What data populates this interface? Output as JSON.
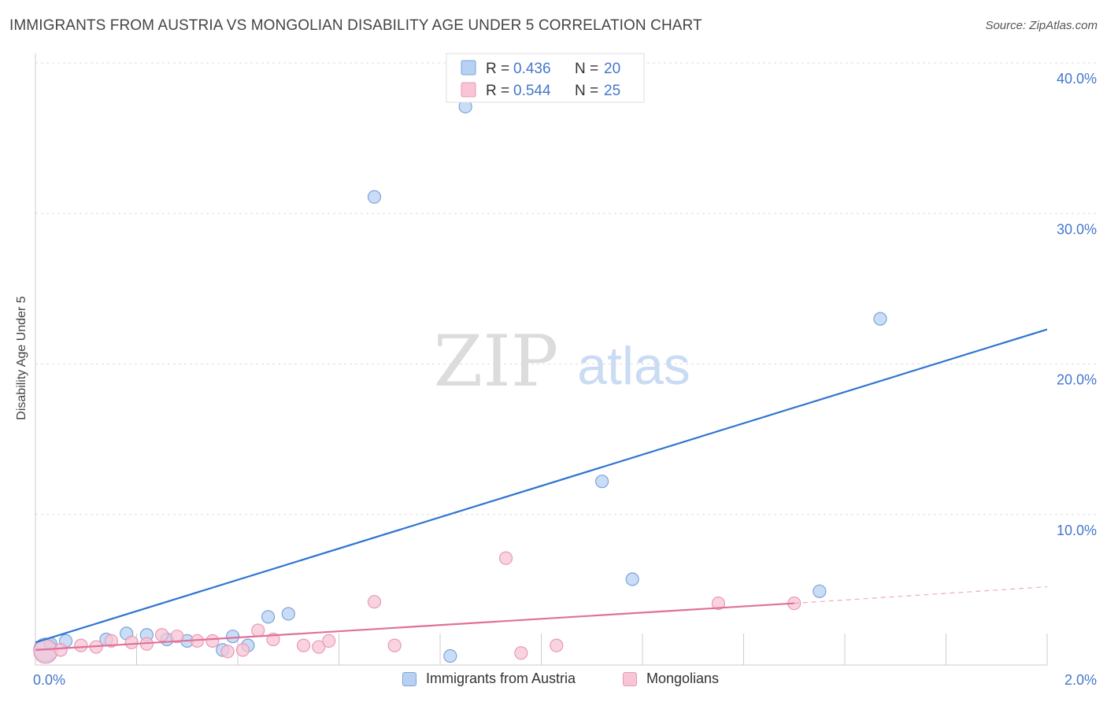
{
  "title": "IMMIGRANTS FROM AUSTRIA VS MONGOLIAN DISABILITY AGE UNDER 5 CORRELATION CHART",
  "source": "Source: ZipAtlas.com",
  "watermark": {
    "zip": "ZIP",
    "atlas": "atlas"
  },
  "colors": {
    "blue_fill": "#b8d1f3",
    "blue_stroke": "#7aa3dc",
    "blue_line": "#2f74d0",
    "pink_fill": "#f7c5d5",
    "pink_stroke": "#eb98b4",
    "pink_line": "#e0709a",
    "axis_text": "#4477cc",
    "grid": "#dddddd"
  },
  "legend": [
    {
      "r_label": "R =",
      "r_value": "0.436",
      "n_label": "N =",
      "n_value": "20"
    },
    {
      "r_label": "R =",
      "r_value": "0.544",
      "n_label": "N =",
      "n_value": "25"
    }
  ],
  "chart_data": {
    "type": "scatter",
    "title": "IMMIGRANTS FROM AUSTRIA VS MONGOLIAN DISABILITY AGE UNDER 5 CORRELATION CHART",
    "xlabel": "",
    "ylabel": "Disability Age Under 5",
    "xlim": [
      0,
      2.0
    ],
    "ylim": [
      0,
      40.0
    ],
    "x_tick_labels": [
      "0.0%",
      "2.0%"
    ],
    "y_ticks": [
      10,
      20,
      30,
      40
    ],
    "y_tick_labels": [
      "10.0%",
      "20.0%",
      "30.0%",
      "40.0%"
    ],
    "series": [
      {
        "name": "Immigrants from Austria",
        "points": [
          {
            "x": 0.02,
            "y": 1.0,
            "big": true
          },
          {
            "x": 0.06,
            "y": 1.6
          },
          {
            "x": 0.14,
            "y": 1.7
          },
          {
            "x": 0.18,
            "y": 2.1
          },
          {
            "x": 0.22,
            "y": 2.0
          },
          {
            "x": 0.26,
            "y": 1.7
          },
          {
            "x": 0.3,
            "y": 1.6
          },
          {
            "x": 0.37,
            "y": 1.0
          },
          {
            "x": 0.39,
            "y": 1.9
          },
          {
            "x": 0.42,
            "y": 1.3
          },
          {
            "x": 0.46,
            "y": 3.2
          },
          {
            "x": 0.5,
            "y": 3.4
          },
          {
            "x": 0.67,
            "y": 31.1
          },
          {
            "x": 0.82,
            "y": 0.6
          },
          {
            "x": 0.85,
            "y": 37.1
          },
          {
            "x": 1.12,
            "y": 12.2
          },
          {
            "x": 1.18,
            "y": 5.7
          },
          {
            "x": 1.55,
            "y": 4.9
          },
          {
            "x": 1.67,
            "y": 23.0
          },
          {
            "x": 0.03,
            "y": 1.4
          }
        ],
        "trend": {
          "x0": 0.0,
          "y0": 1.5,
          "x1": 2.0,
          "y1": 22.3
        }
      },
      {
        "name": "Mongolians",
        "points": [
          {
            "x": 0.02,
            "y": 0.9,
            "big": true
          },
          {
            "x": 0.05,
            "y": 1.0
          },
          {
            "x": 0.09,
            "y": 1.3
          },
          {
            "x": 0.12,
            "y": 1.2
          },
          {
            "x": 0.15,
            "y": 1.6
          },
          {
            "x": 0.19,
            "y": 1.5
          },
          {
            "x": 0.22,
            "y": 1.4
          },
          {
            "x": 0.25,
            "y": 2.0
          },
          {
            "x": 0.28,
            "y": 1.9
          },
          {
            "x": 0.32,
            "y": 1.6
          },
          {
            "x": 0.35,
            "y": 1.6
          },
          {
            "x": 0.38,
            "y": 0.9
          },
          {
            "x": 0.41,
            "y": 1.0
          },
          {
            "x": 0.44,
            "y": 2.3
          },
          {
            "x": 0.47,
            "y": 1.7
          },
          {
            "x": 0.53,
            "y": 1.3
          },
          {
            "x": 0.56,
            "y": 1.2
          },
          {
            "x": 0.58,
            "y": 1.6
          },
          {
            "x": 0.67,
            "y": 4.2
          },
          {
            "x": 0.71,
            "y": 1.3
          },
          {
            "x": 0.93,
            "y": 7.1
          },
          {
            "x": 0.96,
            "y": 0.8
          },
          {
            "x": 1.03,
            "y": 1.3
          },
          {
            "x": 1.35,
            "y": 4.1
          },
          {
            "x": 1.5,
            "y": 4.1
          }
        ],
        "trend": {
          "x0": 0.0,
          "y0": 1.0,
          "x1": 1.5,
          "y1": 4.1
        },
        "trend_dashed": {
          "x0": 1.5,
          "y0": 4.1,
          "x1": 2.0,
          "y1": 5.2
        }
      }
    ]
  }
}
